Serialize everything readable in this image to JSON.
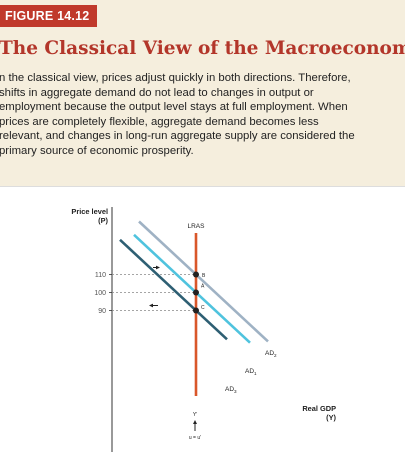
{
  "figure_label": "FIGURE 14.12",
  "title": "The Classical View of the Macroeconomy",
  "body_lines": [
    "n the classical view, prices adjust quickly in both directions. Therefore,",
    "shifts in aggregate demand do not lead to changes in output or",
    "employment because the output level stays at full employment. When",
    "prices are completely flexible, aggregate demand becomes less",
    "relevant, and changes in long-run aggregate supply are considered the",
    "primary source of economic prosperity."
  ],
  "colors": {
    "badge": "#c0392b",
    "title": "#b3362a",
    "lras": "#d9572a",
    "ad2": "#9fb2c4",
    "ad1": "#4fc3de",
    "ad3": "#2e5f73"
  },
  "chart_data": {
    "type": "line",
    "ylabel_line1": "Price level",
    "ylabel_line2": "(P)",
    "xlabel_line1": "Real GDP",
    "xlabel_line2": "(Y)",
    "yticks": [
      {
        "value": 110,
        "label": "110"
      },
      {
        "value": 100,
        "label": "100"
      },
      {
        "value": 90,
        "label": "90"
      }
    ],
    "lras": {
      "label": "LRAS",
      "x_label": "Y'",
      "x_sublabel": "u = u'"
    },
    "series": [
      {
        "name": "AD2",
        "label_main": "AD",
        "label_sub": "2",
        "price_at_lras": 110
      },
      {
        "name": "AD1",
        "label_main": "AD",
        "label_sub": "1",
        "price_at_lras": 100
      },
      {
        "name": "AD3",
        "label_main": "AD",
        "label_sub": "3",
        "price_at_lras": 90
      }
    ],
    "points": [
      {
        "label": "B",
        "price": 110
      },
      {
        "label": "A",
        "price": 100
      },
      {
        "label": "C",
        "price": 90
      }
    ]
  }
}
